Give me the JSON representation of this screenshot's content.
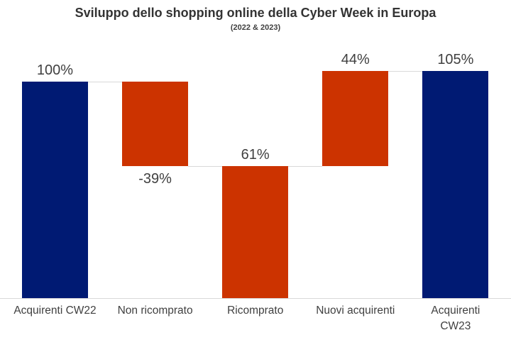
{
  "chart_data": {
    "type": "bar",
    "subtype": "waterfall",
    "title": "Sviluppo dello shopping online della Cyber Week in Europa",
    "subtitle": "(2022 & 2023)",
    "xlabel": "",
    "ylabel": "",
    "ylim": [
      0,
      105
    ],
    "grid": false,
    "legend": "none",
    "categories": [
      "Acquirenti CW22",
      "Non ricomprato",
      "Ricomprato",
      "Nuovi acquirenti",
      "Acquirenti CW23"
    ],
    "values": [
      100,
      -39,
      61,
      44,
      105
    ],
    "bars": [
      {
        "category": "Acquirenti CW22",
        "label_lines": [
          "Acquirenti CW22"
        ],
        "start": 0,
        "end": 100,
        "value": 100,
        "value_label": "100%",
        "color_key": "navy",
        "value_label_position": "above",
        "role": "total"
      },
      {
        "category": "Non ricomprato",
        "label_lines": [
          "Non ricomprato"
        ],
        "start": 100,
        "end": 61,
        "value": -39,
        "value_label": "-39%",
        "color_key": "red",
        "value_label_position": "below",
        "role": "decrease"
      },
      {
        "category": "Ricomprato",
        "label_lines": [
          "Ricomprato"
        ],
        "start": 0,
        "end": 61,
        "value": 61,
        "value_label": "61%",
        "color_key": "red",
        "value_label_position": "above",
        "role": "subtotal"
      },
      {
        "category": "Nuovi acquirenti",
        "label_lines": [
          "Nuovi acquirenti"
        ],
        "start": 61,
        "end": 105,
        "value": 44,
        "value_label": "44%",
        "color_key": "red",
        "value_label_position": "above",
        "role": "increase"
      },
      {
        "category": "Acquirenti CW23",
        "label_lines": [
          "Acquirenti",
          "CW23"
        ],
        "start": 0,
        "end": 105,
        "value": 105,
        "value_label": "105%",
        "color_key": "navy",
        "value_label_position": "above",
        "role": "total"
      }
    ],
    "colors": {
      "navy": "#001a73",
      "red": "#cc3300",
      "connector": "#d9d9d9",
      "axis_line": "#d9d9d9",
      "value_label_text": "#404040",
      "category_label_text": "#404040",
      "title_text": "#333333",
      "background": "#ffffff"
    }
  }
}
